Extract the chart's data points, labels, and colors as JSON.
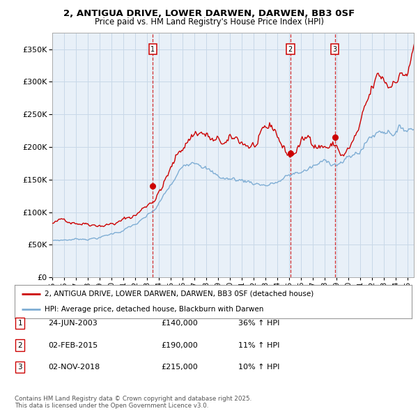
{
  "title": "2, ANTIGUA DRIVE, LOWER DARWEN, DARWEN, BB3 0SF",
  "subtitle": "Price paid vs. HM Land Registry's House Price Index (HPI)",
  "ylim": [
    0,
    375000
  ],
  "yticks": [
    0,
    50000,
    100000,
    150000,
    200000,
    250000,
    300000,
    350000
  ],
  "xlim_start": 1995.0,
  "xlim_end": 2025.5,
  "legend_entry1": "2, ANTIGUA DRIVE, LOWER DARWEN, DARWEN, BB3 0SF (detached house)",
  "legend_entry2": "HPI: Average price, detached house, Blackburn with Darwen",
  "sale1_date": 2003.48,
  "sale1_price": 140000,
  "sale1_label": "1",
  "sale1_text": "24-JUN-2003",
  "sale1_pct": "36% ↑ HPI",
  "sale2_date": 2015.08,
  "sale2_price": 190000,
  "sale2_label": "2",
  "sale2_text": "02-FEB-2015",
  "sale2_pct": "11% ↑ HPI",
  "sale3_date": 2018.84,
  "sale3_price": 215000,
  "sale3_label": "3",
  "sale3_text": "02-NOV-2018",
  "sale3_pct": "10% ↑ HPI",
  "line_color_property": "#cc0000",
  "line_color_hpi": "#7eadd4",
  "chart_bg": "#e8f0f8",
  "background_color": "#ffffff",
  "grid_color": "#c8d8e8",
  "footer": "Contains HM Land Registry data © Crown copyright and database right 2025.\nThis data is licensed under the Open Government Licence v3.0."
}
